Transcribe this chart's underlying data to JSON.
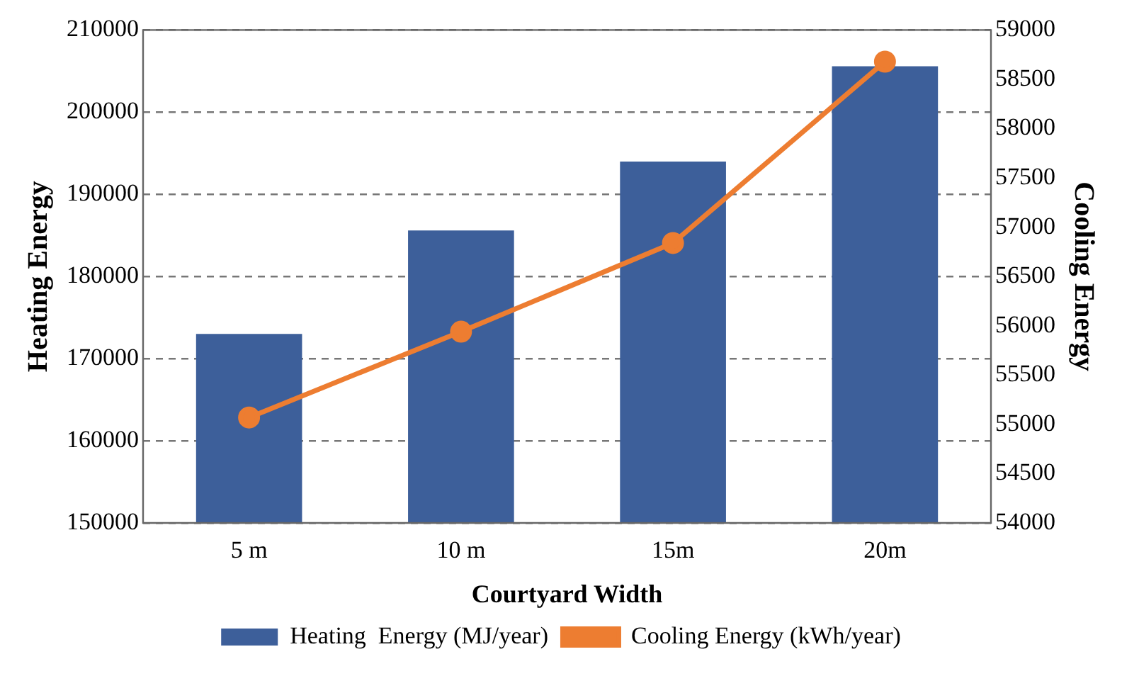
{
  "chart_data": {
    "type": "bar",
    "xlabel": "Courtyard Width",
    "ylabel": "Heating Energy",
    "y2label": "Cooling Energy",
    "categories": [
      "5 m",
      "10 m",
      "15m",
      "20m"
    ],
    "series": [
      {
        "name": "Heating  Energy (MJ/year)",
        "color": "#3d5f9a",
        "values": [
          173000,
          185600,
          194000,
          205600
        ]
      },
      {
        "name": "Cooling Energy (kWh/year)",
        "type": "line",
        "color": "#ed7d31",
        "axis": "y2",
        "marker": "circle",
        "values": [
          55070,
          55940,
          56840,
          58680
        ]
      }
    ],
    "ylim": [
      150000,
      210000
    ],
    "yticks": [
      150000,
      160000,
      170000,
      180000,
      190000,
      200000,
      210000
    ],
    "y2lim": [
      54000,
      59000
    ],
    "y2ticks": [
      54000,
      54500,
      55000,
      55500,
      56000,
      56500,
      57000,
      57500,
      58000,
      58500,
      59000
    ],
    "grid": "y",
    "legend": "bottom"
  }
}
